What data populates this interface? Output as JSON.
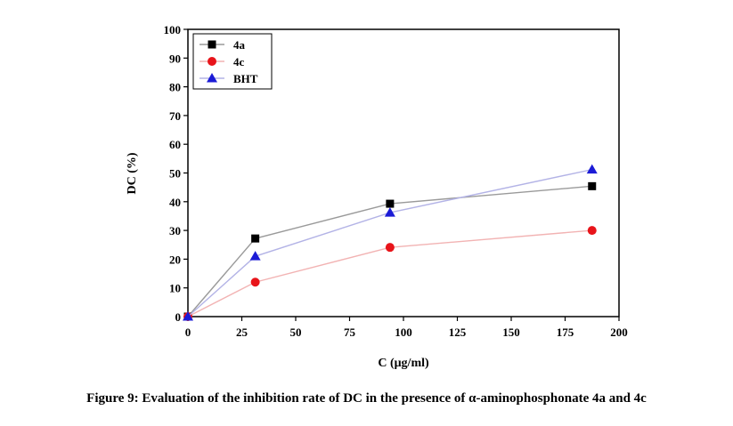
{
  "caption": "Figure 9: Evaluation of the inhibition rate of DC in the presence of α-aminophosphonate 4a and 4c",
  "chart_data": {
    "type": "line",
    "xlabel": "C (μg/ml)",
    "ylabel": "DC (%)",
    "xlim": [
      0,
      200
    ],
    "ylim": [
      0,
      100
    ],
    "xticks": [
      0,
      25,
      50,
      75,
      100,
      125,
      150,
      175,
      200
    ],
    "yticks": [
      0,
      10,
      20,
      30,
      40,
      50,
      60,
      70,
      80,
      90,
      100
    ],
    "grid": false,
    "legend_position": "top-left",
    "series": [
      {
        "name": "4a",
        "marker": "square",
        "marker_color": "#000000",
        "line_color": "#9a9a9a",
        "x": [
          0,
          31.25,
          93.75,
          187.5
        ],
        "y": [
          0,
          27.2,
          39.3,
          45.4
        ]
      },
      {
        "name": "4c",
        "marker": "circle",
        "marker_color": "#e8141a",
        "line_color": "#f2b3b3",
        "x": [
          0,
          31.25,
          93.75,
          187.5
        ],
        "y": [
          0,
          12.0,
          24.1,
          30.0
        ]
      },
      {
        "name": "BHT",
        "marker": "triangle",
        "marker_color": "#1b1bd6",
        "line_color": "#b3b3e6",
        "x": [
          0,
          31.25,
          93.75,
          187.5
        ],
        "y": [
          0,
          21.0,
          36.2,
          51.2
        ]
      }
    ]
  }
}
